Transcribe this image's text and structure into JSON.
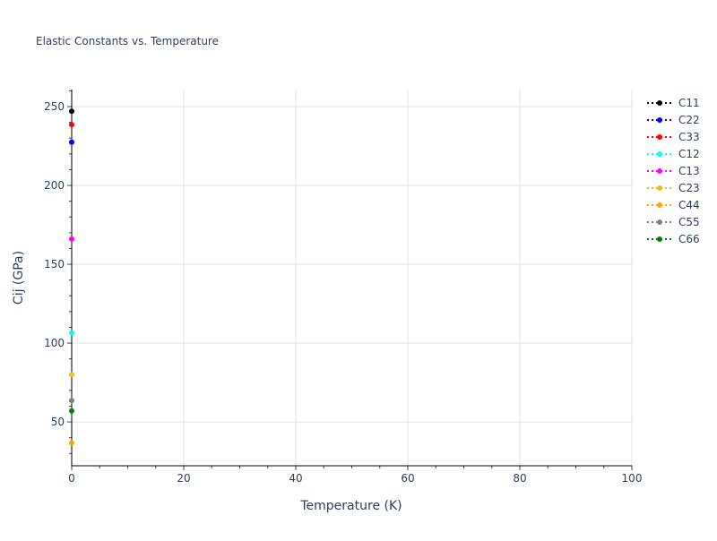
{
  "chart_data": {
    "type": "scatter",
    "title": "Elastic Constants vs. Temperature",
    "xlabel": "Temperature (K)",
    "ylabel": "Cij (GPa)",
    "xlim": [
      0,
      100
    ],
    "ylim": [
      22.2,
      260.8
    ],
    "xticks": [
      0,
      20,
      40,
      60,
      80,
      100
    ],
    "yticks": [
      50,
      100,
      150,
      200,
      250
    ],
    "grid": true,
    "legend": "right",
    "series": [
      {
        "name": "C11",
        "color": "#000000",
        "x": [
          0
        ],
        "y": [
          247
        ]
      },
      {
        "name": "C22",
        "color": "#0000ff",
        "x": [
          0
        ],
        "y": [
          227.4
        ]
      },
      {
        "name": "C33",
        "color": "#ff0000",
        "x": [
          0
        ],
        "y": [
          238.6
        ]
      },
      {
        "name": "C12",
        "color": "#00ffff",
        "x": [
          0
        ],
        "y": [
          106.5
        ]
      },
      {
        "name": "C13",
        "color": "#ff00ff",
        "x": [
          0
        ],
        "y": [
          166
        ]
      },
      {
        "name": "C23",
        "color": "#eebc1d",
        "x": [
          0
        ],
        "y": [
          80
        ]
      },
      {
        "name": "C44",
        "color": "#ffa500",
        "x": [
          0
        ],
        "y": [
          36.7
        ]
      },
      {
        "name": "C55",
        "color": "#808080",
        "x": [
          0
        ],
        "y": [
          63.6
        ]
      },
      {
        "name": "C66",
        "color": "#008000",
        "x": [
          0
        ],
        "y": [
          57
        ]
      }
    ]
  }
}
